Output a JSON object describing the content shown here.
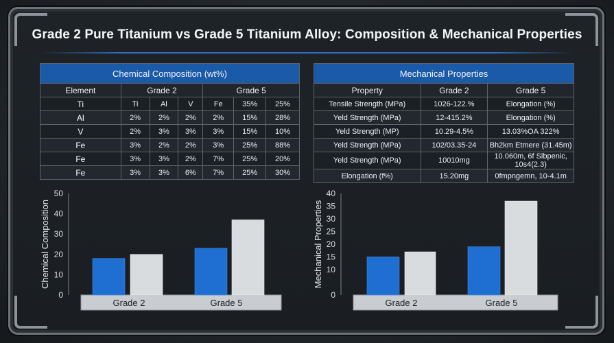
{
  "title": "Grade 2 Pure Titanium vs Grade 5 Titanium Alloy: Composition & Mechanical Properties",
  "colors": {
    "blue": "#1f6fd2",
    "silver": "#d9dcdf",
    "header": "#1a5aa8",
    "accent": "#2f6fc7"
  },
  "composition_table": {
    "title": "Chemical Composition (wt%)",
    "headers": [
      "Element",
      "Grade 2",
      "Grade 5"
    ],
    "rows": [
      {
        "label": "Ti",
        "cells": [
          "Ti",
          "Al",
          "V",
          "Fe",
          "35%",
          "25%"
        ]
      },
      {
        "label": "Al",
        "cells": [
          "2%",
          "2%",
          "2%",
          "2%",
          "15%",
          "28%"
        ]
      },
      {
        "label": "V",
        "cells": [
          "2%",
          "3%",
          "3%",
          "3%",
          "15%",
          "10%"
        ]
      },
      {
        "label": "Fe",
        "cells": [
          "3%",
          "2%",
          "2%",
          "3%",
          "25%",
          "88%"
        ]
      },
      {
        "label": "Fe",
        "cells": [
          "3%",
          "3%",
          "2%",
          "7%",
          "25%",
          "20%"
        ]
      },
      {
        "label": "Fe",
        "cells": [
          "3%",
          "3%",
          "6%",
          "7%",
          "25%",
          "30%"
        ]
      }
    ]
  },
  "mechanical_table": {
    "title": "Mechanical Properties",
    "headers": [
      "Property",
      "Grade 2",
      "Grade 5"
    ],
    "rows": [
      {
        "label": "Tensile Strength (MPa)",
        "g2": "1026-122.%",
        "g5": "Elongation (%)"
      },
      {
        "label": "Yeld Strength (MPa)",
        "g2": "12-415.2%",
        "g5": "Elongation (%)"
      },
      {
        "label": "Yeld Strength (MP)",
        "g2": "10.29-4.5%",
        "g5": "13.03%OA 322%"
      },
      {
        "label": "Yeld Strength (MPa)",
        "g2": "102/03.35-24",
        "g5": "Bh2km Etmere (31.45m)"
      },
      {
        "label": "Yeld Strength (MPa)",
        "g2": "10010mg",
        "g5": "10.060m, 6f Slbpenic, 10s4(2.3)"
      },
      {
        "label": "Elongation (f%)",
        "g2": "15.20mg",
        "g5": "0fmpngemn, 10-4.1m"
      }
    ]
  },
  "chart_data": [
    {
      "type": "bar",
      "ylabel": "Chemical Composition",
      "categories": [
        "Grade 2",
        "Grade 5"
      ],
      "ylim": [
        0,
        50
      ],
      "yticks": [
        0,
        10,
        20,
        30,
        40,
        50
      ],
      "series": [
        {
          "color": "#1f6fd2",
          "values": [
            18,
            23
          ]
        },
        {
          "color": "#d9dcdf",
          "values": [
            20,
            37
          ]
        }
      ]
    },
    {
      "type": "bar",
      "ylabel": "Mechanical Properties",
      "categories": [
        "Grade 2",
        "Grade 5"
      ],
      "ylim": [
        0,
        40
      ],
      "yticks": [
        0,
        10,
        15,
        20,
        25,
        30,
        35,
        40
      ],
      "series": [
        {
          "color": "#1f6fd2",
          "values": [
            15,
            19
          ]
        },
        {
          "color": "#d9dcdf",
          "values": [
            17,
            37
          ]
        }
      ]
    }
  ]
}
